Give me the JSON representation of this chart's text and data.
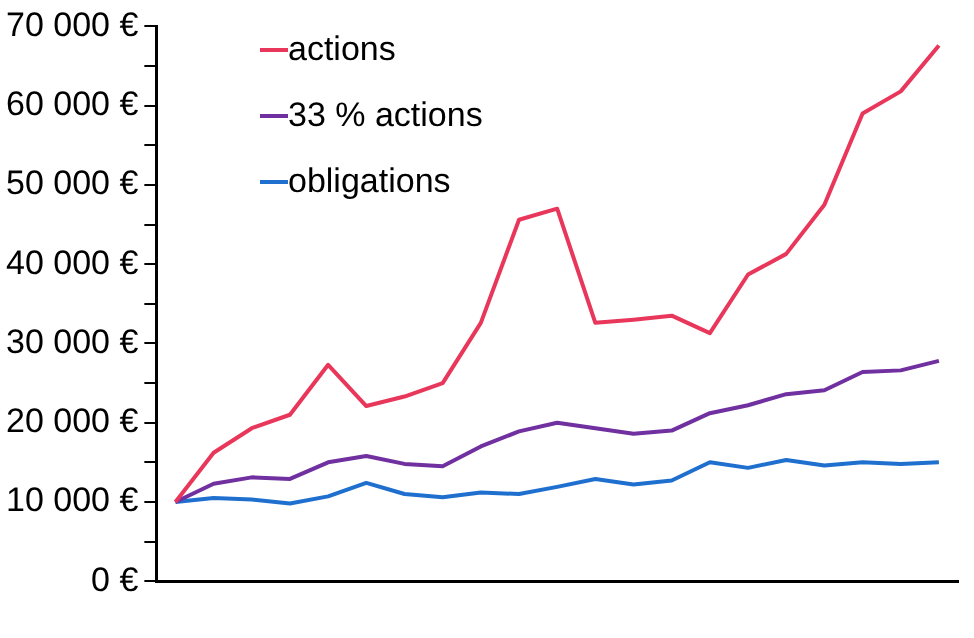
{
  "chart_data": {
    "type": "line",
    "categories": [
      null,
      null,
      null,
      null,
      null,
      null,
      null,
      null,
      null,
      null,
      null,
      null,
      null,
      null,
      null,
      null,
      null,
      null,
      null,
      null,
      null
    ],
    "series": [
      {
        "name": "actions",
        "color": "#e8375a",
        "values": [
          10000,
          16200,
          19300,
          21000,
          27300,
          22100,
          23300,
          25000,
          32600,
          45600,
          47000,
          32600,
          33000,
          33500,
          31300,
          38700,
          41300,
          47500,
          59000,
          61800,
          67600
        ]
      },
      {
        "name": "33 % actions",
        "color": "#7030a0",
        "values": [
          10000,
          12300,
          13100,
          12900,
          15000,
          15800,
          14800,
          14500,
          17000,
          18900,
          20000,
          19300,
          18600,
          19000,
          21200,
          22200,
          23600,
          24100,
          26400,
          26600,
          27800
        ]
      },
      {
        "name": "obligations",
        "color": "#1f6fcf",
        "values": [
          10000,
          10500,
          10300,
          9800,
          10700,
          12400,
          11000,
          10600,
          11200,
          11000,
          11900,
          12900,
          12200,
          12700,
          15000,
          14300,
          15300,
          14600,
          15000,
          14800,
          15000
        ]
      }
    ],
    "ylim": [
      0,
      70000
    ],
    "yticks": [
      {
        "value": 0,
        "label": "0 €"
      },
      {
        "value": 5000,
        "label": null
      },
      {
        "value": 10000,
        "label": "10 000 €"
      },
      {
        "value": 15000,
        "label": null
      },
      {
        "value": 20000,
        "label": "20 000 €"
      },
      {
        "value": 25000,
        "label": null
      },
      {
        "value": 30000,
        "label": "30 000 €"
      },
      {
        "value": 35000,
        "label": null
      },
      {
        "value": 40000,
        "label": "40 000 €"
      },
      {
        "value": 45000,
        "label": null
      },
      {
        "value": 50000,
        "label": "50 000 €"
      },
      {
        "value": 55000,
        "label": null
      },
      {
        "value": 60000,
        "label": "60 000 €"
      },
      {
        "value": 65000,
        "label": null
      },
      {
        "value": 70000,
        "label": "70 000 €"
      }
    ],
    "grid": false,
    "legend": "top left",
    "marker": "none",
    "line_style": "solid"
  }
}
